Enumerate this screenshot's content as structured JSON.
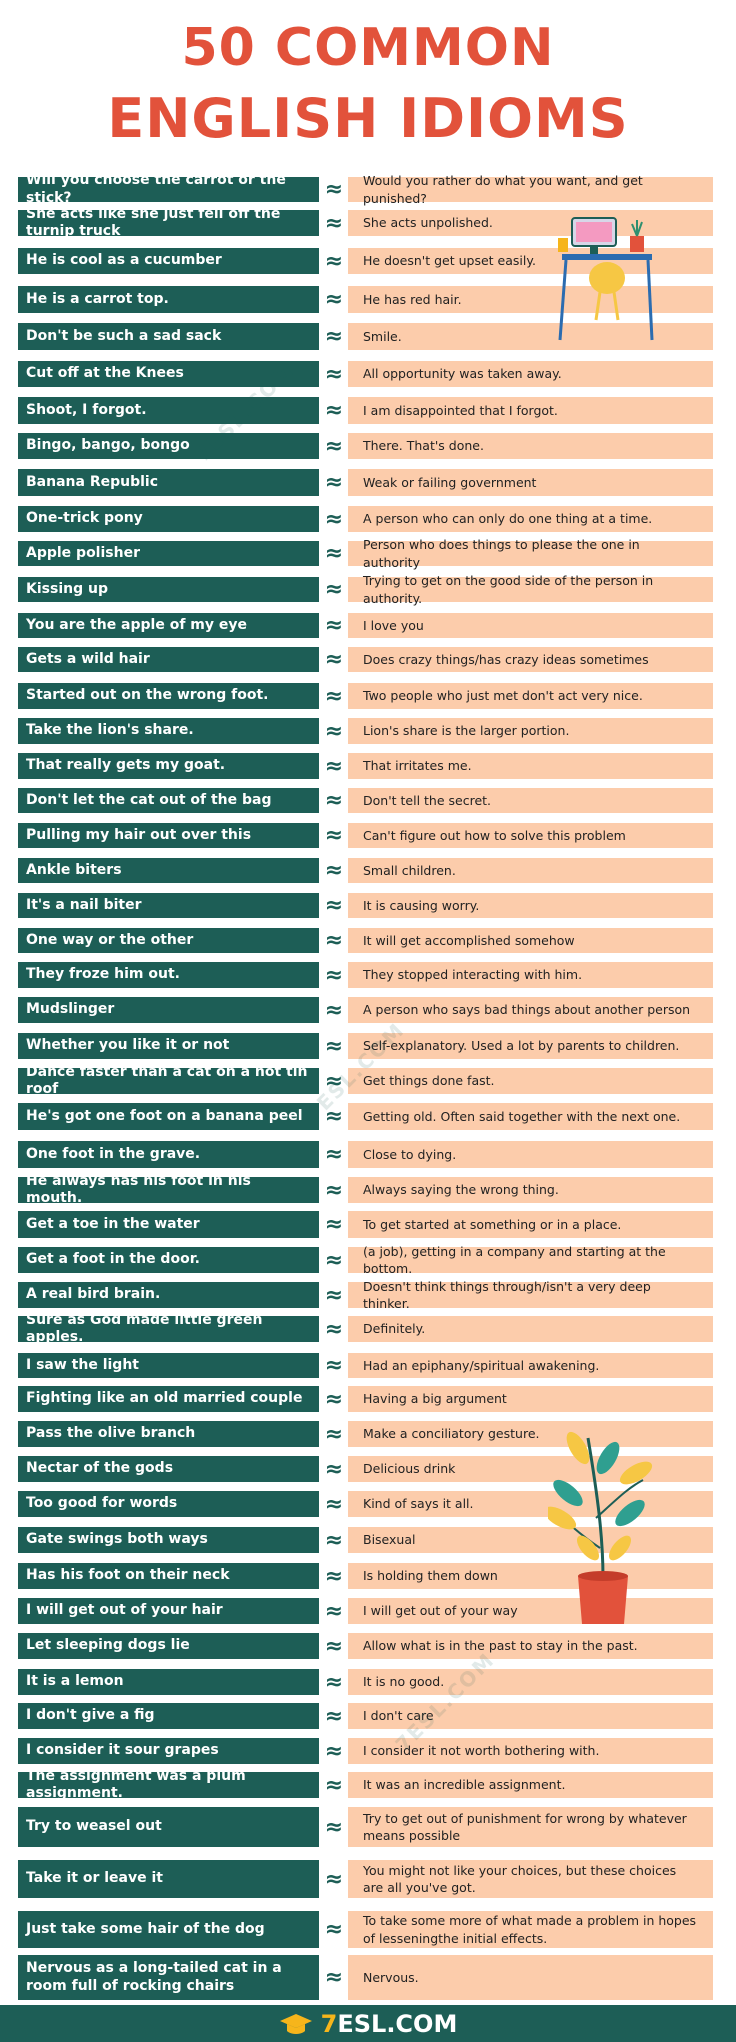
{
  "header": {
    "line1": "50 COMMON",
    "line2": "ENGLISH IDIOMS"
  },
  "separator": "≈",
  "watermark": "7ESL.COM",
  "footer": {
    "brand_number": "7",
    "brand_text": "ESL.COM"
  },
  "colors": {
    "title": "#e2523b",
    "idiom_bg": "#1d5e56",
    "meaning_bg": "#fcccab",
    "logo_accent": "#f6b51b"
  },
  "idioms": [
    {
      "idiom": "Will you choose the carrot or the stick?",
      "meaning": "Would you rather do what you want, and get punished?"
    },
    {
      "idiom": "She acts like she just fell off the turnip truck",
      "meaning": "She acts unpolished."
    },
    {
      "idiom": "He is cool as a cucumber",
      "meaning": "He doesn't get upset easily."
    },
    {
      "idiom": "He is a carrot top.",
      "meaning": "He has red hair."
    },
    {
      "idiom": "Don't be such a sad sack",
      "meaning": "Smile."
    },
    {
      "idiom": "Cut off at the Knees",
      "meaning": "All opportunity was taken away."
    },
    {
      "idiom": "Shoot, I forgot.",
      "meaning": "I am disappointed that I forgot."
    },
    {
      "idiom": "Bingo, bango, bongo",
      "meaning": "There. That's done."
    },
    {
      "idiom": "Banana Republic",
      "meaning": "Weak or failing government"
    },
    {
      "idiom": "One-trick pony",
      "meaning": "A person who can only do one thing at a time."
    },
    {
      "idiom": "Apple polisher",
      "meaning": "Person who does things to please the one in authority"
    },
    {
      "idiom": "Kissing up",
      "meaning": "Trying to get on the good side of the person in authority."
    },
    {
      "idiom": "You are the apple of my eye",
      "meaning": "I love you"
    },
    {
      "idiom": "Gets a wild hair",
      "meaning": "Does crazy things/has crazy ideas sometimes"
    },
    {
      "idiom": "Started out on the wrong foot.",
      "meaning": "Two people who just met don't act very nice."
    },
    {
      "idiom": "Take the lion's share.",
      "meaning": "Lion's share is the larger portion."
    },
    {
      "idiom": "That really gets my goat.",
      "meaning": "That irritates me."
    },
    {
      "idiom": "Don't let the cat out of the bag",
      "meaning": "Don't tell the secret."
    },
    {
      "idiom": "Pulling my hair out over this",
      "meaning": "Can't figure out how to solve this problem"
    },
    {
      "idiom": "Ankle biters",
      "meaning": "Small children."
    },
    {
      "idiom": "It's a nail biter",
      "meaning": "It is causing worry."
    },
    {
      "idiom": "One way or the other",
      "meaning": "It will get accomplished somehow"
    },
    {
      "idiom": "They froze him out.",
      "meaning": "They stopped interacting with him."
    },
    {
      "idiom": "Mudslinger",
      "meaning": "A person who says bad things about another person"
    },
    {
      "idiom": "Whether you like it or not",
      "meaning": "Self-explanatory. Used a lot by parents to children."
    },
    {
      "idiom": "Dance faster than a cat on a hot tin roof",
      "meaning": "Get things done fast."
    },
    {
      "idiom": "He's got one foot on a banana peel",
      "meaning": "Getting old. Often said together with the next one."
    },
    {
      "idiom": "One foot in the grave.",
      "meaning": "Close to dying."
    },
    {
      "idiom": "He always has his foot in his mouth.",
      "meaning": "Always saying the wrong thing."
    },
    {
      "idiom": "Get a toe in the water",
      "meaning": "To get started at something or in a place."
    },
    {
      "idiom": "Get a foot in the door.",
      "meaning": "(a job), getting in a company and starting at the bottom."
    },
    {
      "idiom": "A real bird brain.",
      "meaning": "Doesn't think things through/isn't a very deep thinker."
    },
    {
      "idiom": "Sure as God made little green apples.",
      "meaning": "Definitely."
    },
    {
      "idiom": "I saw the light",
      "meaning": "Had an epiphany/spiritual awakening."
    },
    {
      "idiom": "Fighting like an old married couple",
      "meaning": "Having a big argument"
    },
    {
      "idiom": "Pass the olive branch",
      "meaning": "Make a conciliatory gesture."
    },
    {
      "idiom": "Nectar of the gods",
      "meaning": "Delicious drink"
    },
    {
      "idiom": "Too good for words",
      "meaning": "Kind of says it all."
    },
    {
      "idiom": "Gate swings both ways",
      "meaning": "Bisexual"
    },
    {
      "idiom": "Has his foot on their neck",
      "meaning": "Is holding them down"
    },
    {
      "idiom": "I will get out of your hair",
      "meaning": "I will get out of your way"
    },
    {
      "idiom": "Let sleeping dogs lie",
      "meaning": "Allow what is in the past to stay in the past."
    },
    {
      "idiom": "It is a lemon",
      "meaning": "It is no good."
    },
    {
      "idiom": "I don't give a fig",
      "meaning": "I don't care"
    },
    {
      "idiom": "I consider it sour grapes",
      "meaning": "I consider it not worth bothering with."
    },
    {
      "idiom": "The assignment was a plum assignment.",
      "meaning": "It was an incredible assignment."
    },
    {
      "idiom": "Try to weasel out",
      "meaning": "Try to get out of punishment for wrong by whatever means possible"
    },
    {
      "idiom": "Take it or leave it",
      "meaning": "You might not like your choices, but these choices are all you've got."
    },
    {
      "idiom": "Just take some hair of the dog",
      "meaning": "To take some more of what made a problem in hopes of lesseningthe initial effects."
    },
    {
      "idiom": "Nervous as a long-tailed cat in a room full of rocking chairs",
      "meaning": "Nervous."
    }
  ]
}
